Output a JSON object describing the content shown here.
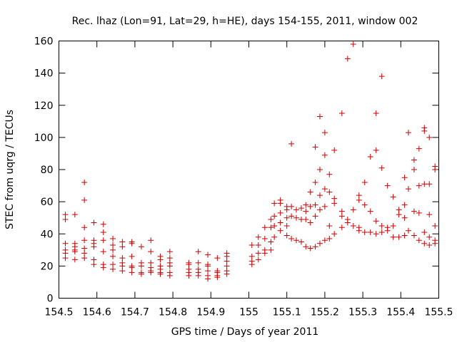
{
  "chart_data": {
    "type": "scatter",
    "title": "Rec. lhaz (Lon=91, Lat=29, h=HE), days 154-155, 2011, window 002",
    "xlabel": "GPS time / Days of year 2011",
    "ylabel": "STEC from uqrg / TECUs",
    "xlim": [
      154.5,
      155.5
    ],
    "ylim": [
      0,
      160
    ],
    "xticks": [
      154.5,
      154.6,
      154.7,
      154.8,
      154.9,
      155,
      155.1,
      155.2,
      155.3,
      155.4,
      155.5
    ],
    "xtick_labels": [
      "154.5",
      "154.6",
      "154.7",
      "154.8",
      "154.9",
      "155",
      "155.1",
      "155.2",
      "155.3",
      "155.4",
      "155.5"
    ],
    "yticks": [
      0,
      20,
      40,
      60,
      80,
      100,
      120,
      140,
      160
    ],
    "ytick_labels": [
      "0",
      "20",
      "40",
      "60",
      "80",
      "100",
      "120",
      "140",
      "160"
    ],
    "grid": false,
    "marker": "plus",
    "color": "#cc0000",
    "points": [
      [
        154.517,
        52
      ],
      [
        154.517,
        49
      ],
      [
        154.517,
        34
      ],
      [
        154.517,
        30
      ],
      [
        154.517,
        28
      ],
      [
        154.517,
        25
      ],
      [
        154.542,
        52
      ],
      [
        154.542,
        34
      ],
      [
        154.542,
        32
      ],
      [
        154.542,
        30
      ],
      [
        154.542,
        29
      ],
      [
        154.542,
        24
      ],
      [
        154.567,
        72
      ],
      [
        154.567,
        61
      ],
      [
        154.567,
        44
      ],
      [
        154.567,
        36
      ],
      [
        154.567,
        31
      ],
      [
        154.567,
        28
      ],
      [
        154.567,
        25
      ],
      [
        154.592,
        47
      ],
      [
        154.592,
        36
      ],
      [
        154.592,
        34
      ],
      [
        154.592,
        32
      ],
      [
        154.592,
        24
      ],
      [
        154.592,
        21
      ],
      [
        154.617,
        46
      ],
      [
        154.617,
        41
      ],
      [
        154.617,
        36
      ],
      [
        154.617,
        29
      ],
      [
        154.617,
        21
      ],
      [
        154.617,
        19
      ],
      [
        154.642,
        37
      ],
      [
        154.642,
        33
      ],
      [
        154.642,
        30
      ],
      [
        154.642,
        26
      ],
      [
        154.642,
        21
      ],
      [
        154.642,
        18
      ],
      [
        154.667,
        35
      ],
      [
        154.667,
        32
      ],
      [
        154.667,
        25
      ],
      [
        154.667,
        22
      ],
      [
        154.667,
        20
      ],
      [
        154.667,
        17
      ],
      [
        154.692,
        35
      ],
      [
        154.692,
        34
      ],
      [
        154.692,
        26
      ],
      [
        154.692,
        20
      ],
      [
        154.692,
        19
      ],
      [
        154.692,
        16
      ],
      [
        154.717,
        32
      ],
      [
        154.717,
        22
      ],
      [
        154.717,
        20
      ],
      [
        154.717,
        16
      ],
      [
        154.717,
        15
      ],
      [
        154.742,
        36
      ],
      [
        154.742,
        29
      ],
      [
        154.742,
        22
      ],
      [
        154.742,
        19
      ],
      [
        154.742,
        17
      ],
      [
        154.742,
        16
      ],
      [
        154.767,
        26
      ],
      [
        154.767,
        24
      ],
      [
        154.767,
        20
      ],
      [
        154.767,
        18
      ],
      [
        154.767,
        16
      ],
      [
        154.767,
        15
      ],
      [
        154.792,
        29
      ],
      [
        154.792,
        25
      ],
      [
        154.792,
        22
      ],
      [
        154.792,
        20
      ],
      [
        154.792,
        16
      ],
      [
        154.792,
        14
      ],
      [
        154.842,
        22
      ],
      [
        154.842,
        21
      ],
      [
        154.842,
        18
      ],
      [
        154.842,
        16
      ],
      [
        154.842,
        14
      ],
      [
        154.867,
        29
      ],
      [
        154.867,
        22
      ],
      [
        154.867,
        18
      ],
      [
        154.867,
        16
      ],
      [
        154.867,
        14
      ],
      [
        154.892,
        27
      ],
      [
        154.892,
        21
      ],
      [
        154.892,
        20
      ],
      [
        154.892,
        17
      ],
      [
        154.892,
        14
      ],
      [
        154.892,
        12
      ],
      [
        154.917,
        25
      ],
      [
        154.917,
        17
      ],
      [
        154.917,
        16
      ],
      [
        154.917,
        14
      ],
      [
        154.917,
        13
      ],
      [
        154.942,
        28
      ],
      [
        154.942,
        26
      ],
      [
        154.942,
        23
      ],
      [
        154.942,
        20
      ],
      [
        154.942,
        17
      ],
      [
        154.942,
        15
      ],
      [
        155.008,
        33
      ],
      [
        155.008,
        26
      ],
      [
        155.008,
        23
      ],
      [
        155.008,
        21
      ],
      [
        155.025,
        38
      ],
      [
        155.025,
        33
      ],
      [
        155.025,
        28
      ],
      [
        155.025,
        24
      ],
      [
        155.042,
        44
      ],
      [
        155.042,
        37
      ],
      [
        155.042,
        30
      ],
      [
        155.042,
        28
      ],
      [
        155.058,
        49
      ],
      [
        155.058,
        44
      ],
      [
        155.058,
        35
      ],
      [
        155.058,
        30
      ],
      [
        155.067,
        59
      ],
      [
        155.067,
        51
      ],
      [
        155.067,
        45
      ],
      [
        155.067,
        38
      ],
      [
        155.083,
        61
      ],
      [
        155.083,
        59
      ],
      [
        155.083,
        53
      ],
      [
        155.083,
        47
      ],
      [
        155.083,
        42
      ],
      [
        155.1,
        57
      ],
      [
        155.1,
        55
      ],
      [
        155.1,
        50
      ],
      [
        155.1,
        45
      ],
      [
        155.1,
        39
      ],
      [
        155.112,
        96
      ],
      [
        155.112,
        57
      ],
      [
        155.112,
        51
      ],
      [
        155.112,
        37
      ],
      [
        155.125,
        55
      ],
      [
        155.125,
        50
      ],
      [
        155.125,
        36
      ],
      [
        155.138,
        56
      ],
      [
        155.138,
        49
      ],
      [
        155.138,
        35
      ],
      [
        155.15,
        58
      ],
      [
        155.15,
        54
      ],
      [
        155.15,
        49
      ],
      [
        155.15,
        32
      ],
      [
        155.162,
        66
      ],
      [
        155.162,
        57
      ],
      [
        155.162,
        47
      ],
      [
        155.162,
        31
      ],
      [
        155.175,
        94
      ],
      [
        155.175,
        72
      ],
      [
        155.175,
        58
      ],
      [
        155.175,
        51
      ],
      [
        155.175,
        32
      ],
      [
        155.187,
        113
      ],
      [
        155.187,
        80
      ],
      [
        155.187,
        64
      ],
      [
        155.187,
        55
      ],
      [
        155.187,
        34
      ],
      [
        155.2,
        103
      ],
      [
        155.2,
        89
      ],
      [
        155.2,
        68
      ],
      [
        155.2,
        57
      ],
      [
        155.2,
        36
      ],
      [
        155.212,
        77
      ],
      [
        155.212,
        66
      ],
      [
        155.212,
        45
      ],
      [
        155.212,
        37
      ],
      [
        155.225,
        92
      ],
      [
        155.225,
        62
      ],
      [
        155.225,
        59
      ],
      [
        155.225,
        40
      ],
      [
        155.245,
        115
      ],
      [
        155.245,
        54
      ],
      [
        155.245,
        51
      ],
      [
        155.245,
        44
      ],
      [
        155.26,
        149
      ],
      [
        155.26,
        49
      ],
      [
        155.26,
        47
      ],
      [
        155.275,
        158
      ],
      [
        155.275,
        55
      ],
      [
        155.275,
        45
      ],
      [
        155.29,
        64
      ],
      [
        155.29,
        61
      ],
      [
        155.29,
        44
      ],
      [
        155.29,
        42
      ],
      [
        155.305,
        72
      ],
      [
        155.305,
        58
      ],
      [
        155.305,
        41
      ],
      [
        155.32,
        88
      ],
      [
        155.32,
        54
      ],
      [
        155.32,
        41
      ],
      [
        155.335,
        115
      ],
      [
        155.335,
        92
      ],
      [
        155.335,
        48
      ],
      [
        155.335,
        40
      ],
      [
        155.35,
        138
      ],
      [
        155.35,
        81
      ],
      [
        155.35,
        45
      ],
      [
        155.35,
        41
      ],
      [
        155.365,
        70
      ],
      [
        155.365,
        44
      ],
      [
        155.365,
        42
      ],
      [
        155.38,
        63
      ],
      [
        155.38,
        45
      ],
      [
        155.38,
        38
      ],
      [
        155.395,
        55
      ],
      [
        155.395,
        52
      ],
      [
        155.395,
        38
      ],
      [
        155.41,
        75
      ],
      [
        155.41,
        58
      ],
      [
        155.41,
        50
      ],
      [
        155.41,
        39
      ],
      [
        155.42,
        103
      ],
      [
        155.42,
        68
      ],
      [
        155.42,
        42
      ],
      [
        155.435,
        86
      ],
      [
        155.435,
        80
      ],
      [
        155.435,
        54
      ],
      [
        155.435,
        39
      ],
      [
        155.448,
        93
      ],
      [
        155.448,
        70
      ],
      [
        155.448,
        53
      ],
      [
        155.448,
        36
      ],
      [
        155.462,
        106
      ],
      [
        155.462,
        104
      ],
      [
        155.462,
        71
      ],
      [
        155.462,
        41
      ],
      [
        155.462,
        34
      ],
      [
        155.475,
        100
      ],
      [
        155.475,
        71
      ],
      [
        155.475,
        52
      ],
      [
        155.475,
        38
      ],
      [
        155.475,
        33
      ],
      [
        155.49,
        82
      ],
      [
        155.49,
        80
      ],
      [
        155.49,
        45
      ],
      [
        155.49,
        36
      ],
      [
        155.49,
        34
      ]
    ]
  }
}
